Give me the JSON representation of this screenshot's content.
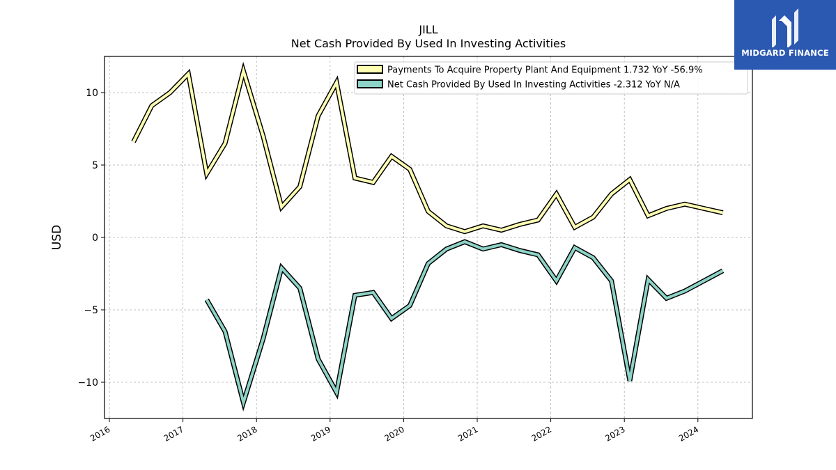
{
  "chart_data": {
    "type": "line",
    "title": "JILL",
    "subtitle": "Net Cash Provided By Used In Investing Activities",
    "ylabel": "USD",
    "xlabel": "",
    "ylim": [
      -12.5,
      12.5
    ],
    "yticks": [
      10,
      5,
      0,
      -5,
      -10
    ],
    "xticks": [
      "2016",
      "2017",
      "2018",
      "2019",
      "2020",
      "2021",
      "2022",
      "2023",
      "2024"
    ],
    "grid": true,
    "legend_position": "top-right",
    "series": [
      {
        "name": "Payments To Acquire Property Plant And Equipment",
        "legend_label": "Payments To Acquire Property Plant And Equipment  1.732 YoY -56.9%",
        "color": "#ffffb3",
        "points": [
          [
            "2016-04-30",
            6.6
          ],
          [
            "2016-07-30",
            9.1
          ],
          [
            "2016-10-29",
            10.0
          ],
          [
            "2017-01-28",
            11.3
          ],
          [
            "2017-04-29",
            4.4
          ],
          [
            "2017-07-29",
            6.5
          ],
          [
            "2017-10-28",
            11.5
          ],
          [
            "2018-02-03",
            7.0
          ],
          [
            "2018-05-05",
            2.1
          ],
          [
            "2018-08-04",
            3.5
          ],
          [
            "2018-11-03",
            8.4
          ],
          [
            "2019-02-02",
            10.7
          ],
          [
            "2019-05-04",
            4.1
          ],
          [
            "2019-08-03",
            3.8
          ],
          [
            "2019-11-02",
            5.6
          ],
          [
            "2020-02-01",
            4.7
          ],
          [
            "2020-05-02",
            1.8
          ],
          [
            "2020-08-01",
            0.8
          ],
          [
            "2020-10-31",
            0.4
          ],
          [
            "2021-01-30",
            0.8
          ],
          [
            "2021-05-01",
            0.5
          ],
          [
            "2021-07-31",
            0.9
          ],
          [
            "2021-10-30",
            1.2
          ],
          [
            "2022-01-29",
            3.0
          ],
          [
            "2022-04-30",
            0.7
          ],
          [
            "2022-07-30",
            1.4
          ],
          [
            "2022-10-29",
            3.0
          ],
          [
            "2023-01-28",
            4.0
          ],
          [
            "2023-04-29",
            1.5
          ],
          [
            "2023-07-29",
            2.0
          ],
          [
            "2023-10-28",
            2.3
          ],
          [
            "2024-05-04",
            1.7
          ]
        ]
      },
      {
        "name": "Net Cash Provided By Used In Investing Activities",
        "legend_label": "Net Cash Provided By Used In Investing Activities  -2.312 YoY N/A",
        "color": "#8dd3c7",
        "points": [
          [
            "2017-04-29",
            -4.3
          ],
          [
            "2017-07-29",
            -6.5
          ],
          [
            "2017-10-28",
            -11.4
          ],
          [
            "2018-02-03",
            -7.0
          ],
          [
            "2018-05-05",
            -2.1
          ],
          [
            "2018-08-04",
            -3.5
          ],
          [
            "2018-11-03",
            -8.4
          ],
          [
            "2019-02-02",
            -10.7
          ],
          [
            "2019-05-04",
            -4.0
          ],
          [
            "2019-08-03",
            -3.8
          ],
          [
            "2019-11-02",
            -5.6
          ],
          [
            "2020-02-01",
            -4.7
          ],
          [
            "2020-05-02",
            -1.8
          ],
          [
            "2020-08-01",
            -0.8
          ],
          [
            "2020-10-31",
            -0.3
          ],
          [
            "2021-01-30",
            -0.8
          ],
          [
            "2021-05-01",
            -0.5
          ],
          [
            "2021-07-31",
            -0.9
          ],
          [
            "2021-10-30",
            -1.2
          ],
          [
            "2022-01-29",
            -3.0
          ],
          [
            "2022-04-30",
            -0.7
          ],
          [
            "2022-07-30",
            -1.4
          ],
          [
            "2022-10-29",
            -3.0
          ],
          [
            "2023-01-28",
            -9.9
          ],
          [
            "2023-04-29",
            -2.9
          ],
          [
            "2023-07-29",
            -4.2
          ],
          [
            "2023-10-28",
            -3.7
          ],
          [
            "2024-05-04",
            -2.3
          ]
        ]
      }
    ]
  },
  "brand": {
    "name": "MIDGARD FINANCE",
    "background": "#2b58b0"
  }
}
